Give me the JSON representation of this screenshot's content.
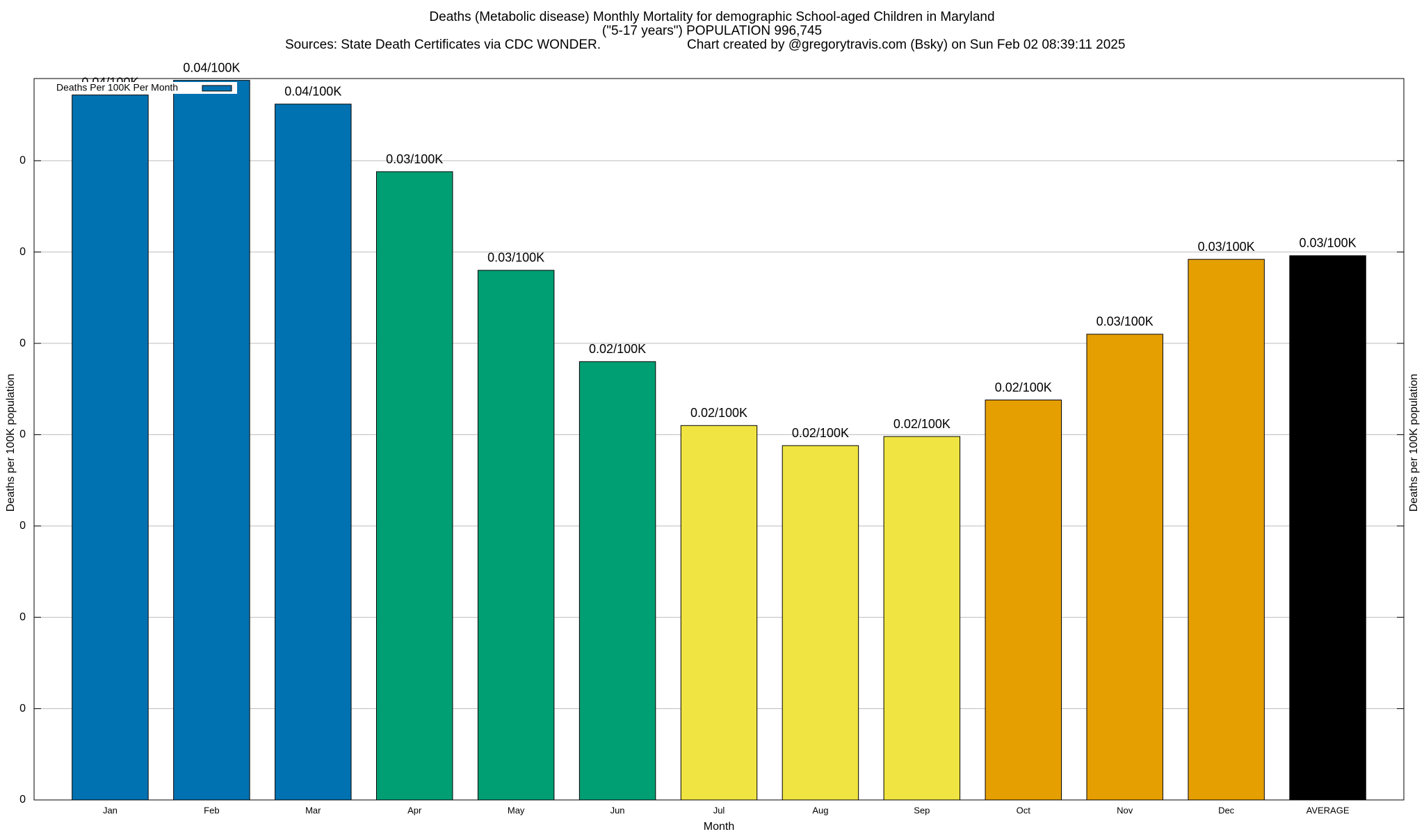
{
  "chart_data": {
    "type": "bar",
    "title": "Deaths (Metabolic disease) Monthly Mortality for demographic School-aged Children in Maryland",
    "subtitle": "(\"5-17 years\") POPULATION 996,745",
    "sources": "Sources: State Death Certificates via CDC WONDER.",
    "credit": "Chart created by @gregorytravis.com (Bsky) on Sun Feb 02 08:39:11 2025",
    "x_label": "Month",
    "y_label": "Deaths per 100K population",
    "y2_label": "Deaths per 100K population",
    "categories": [
      "Jan",
      "Feb",
      "Mar",
      "Apr",
      "May",
      "Jun",
      "Jul",
      "Aug",
      "Sep",
      "Oct",
      "Nov",
      "Dec",
      "AVERAGE"
    ],
    "series": [
      {
        "name": "Deaths Per 100K Per Month",
        "color": "#0072b2",
        "colors": [
          "#0072b2",
          "#0072b2",
          "#0072b2",
          "#009e73",
          "#009e73",
          "#009e73",
          "#f0e442",
          "#f0e442",
          "#f0e442",
          "#e69f00",
          "#e69f00",
          "#e69f00",
          "#000000"
        ],
        "values": [
          0.0386,
          0.0394,
          0.0381,
          0.0344,
          0.029,
          0.024,
          0.0205,
          0.0194,
          0.0199,
          0.0219,
          0.0255,
          0.0296,
          0.0298
        ],
        "value_labels": [
          "0.04/100K",
          "0.04/100K",
          "0.04/100K",
          "0.03/100K",
          "0.03/100K",
          "0.02/100K",
          "0.02/100K",
          "0.02/100K",
          "0.02/100K",
          "0.02/100K",
          "0.03/100K",
          "0.03/100K",
          "0.03/100K"
        ]
      }
    ],
    "ylim": [
      0,
      0.0395
    ],
    "yticks": [
      0,
      {
        "value": 0.005,
        "label": "0"
      },
      {
        "value": 0.01,
        "label": "0"
      },
      {
        "value": 0.015,
        "label": "0"
      },
      {
        "value": 0.02,
        "label": "0"
      },
      {
        "value": 0.025,
        "label": "0"
      },
      {
        "value": 0.03,
        "label": "0"
      },
      {
        "value": 0.035,
        "label": "0"
      }
    ],
    "grid": true,
    "legend": "upper left"
  }
}
